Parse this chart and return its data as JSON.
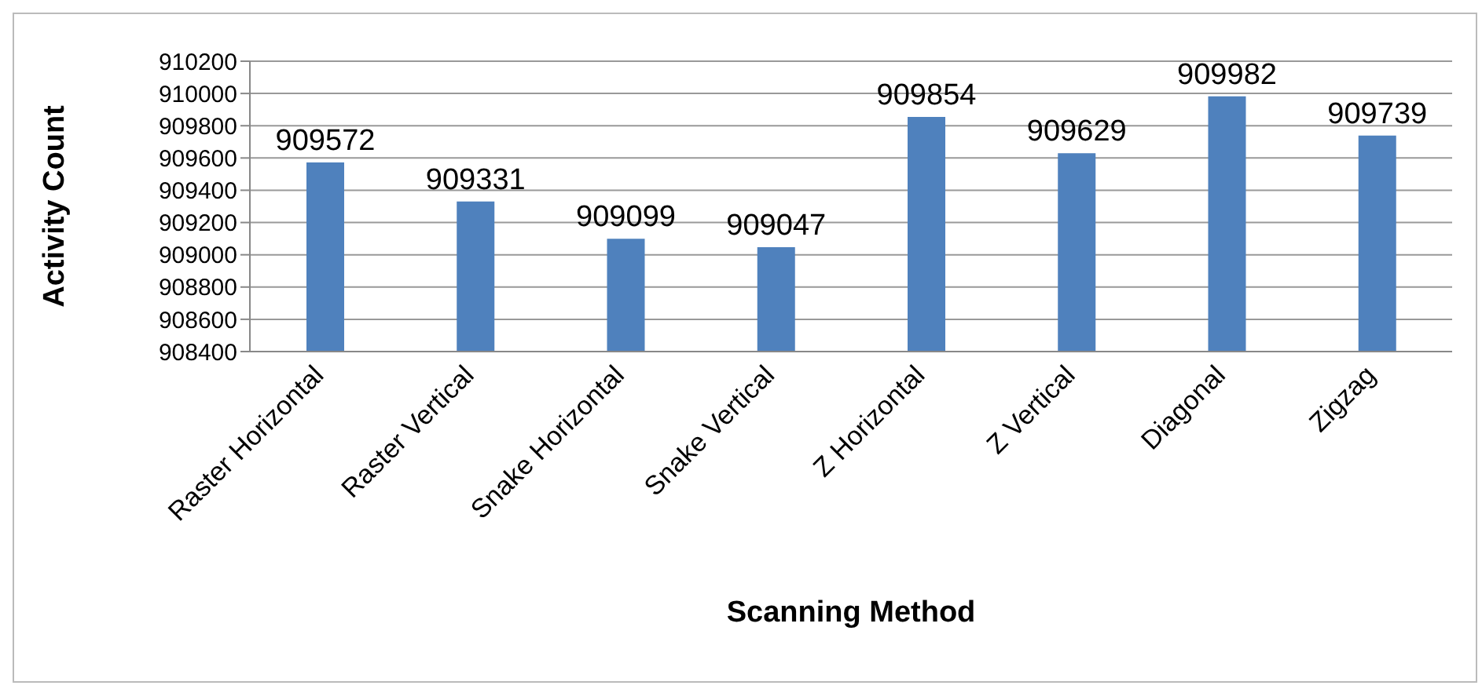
{
  "chart_data": {
    "type": "bar",
    "xlabel": "Scanning Method",
    "ylabel": "Activity Count",
    "categories": [
      "Raster Horizontal",
      "Raster Vertical",
      "Snake Horizontal",
      "Snake Vertical",
      "Z Horizontal",
      "Z Vertical",
      "Diagonal",
      "Zigzag"
    ],
    "values": [
      909572,
      909331,
      909099,
      909047,
      909854,
      909629,
      909982,
      909739
    ],
    "color": "#4f81bd",
    "ylim": [
      908400,
      910200
    ],
    "yticks": [
      908400,
      908600,
      908800,
      909000,
      909200,
      909400,
      909600,
      909800,
      910000,
      910200
    ],
    "grid": "y",
    "data_labels": true
  }
}
